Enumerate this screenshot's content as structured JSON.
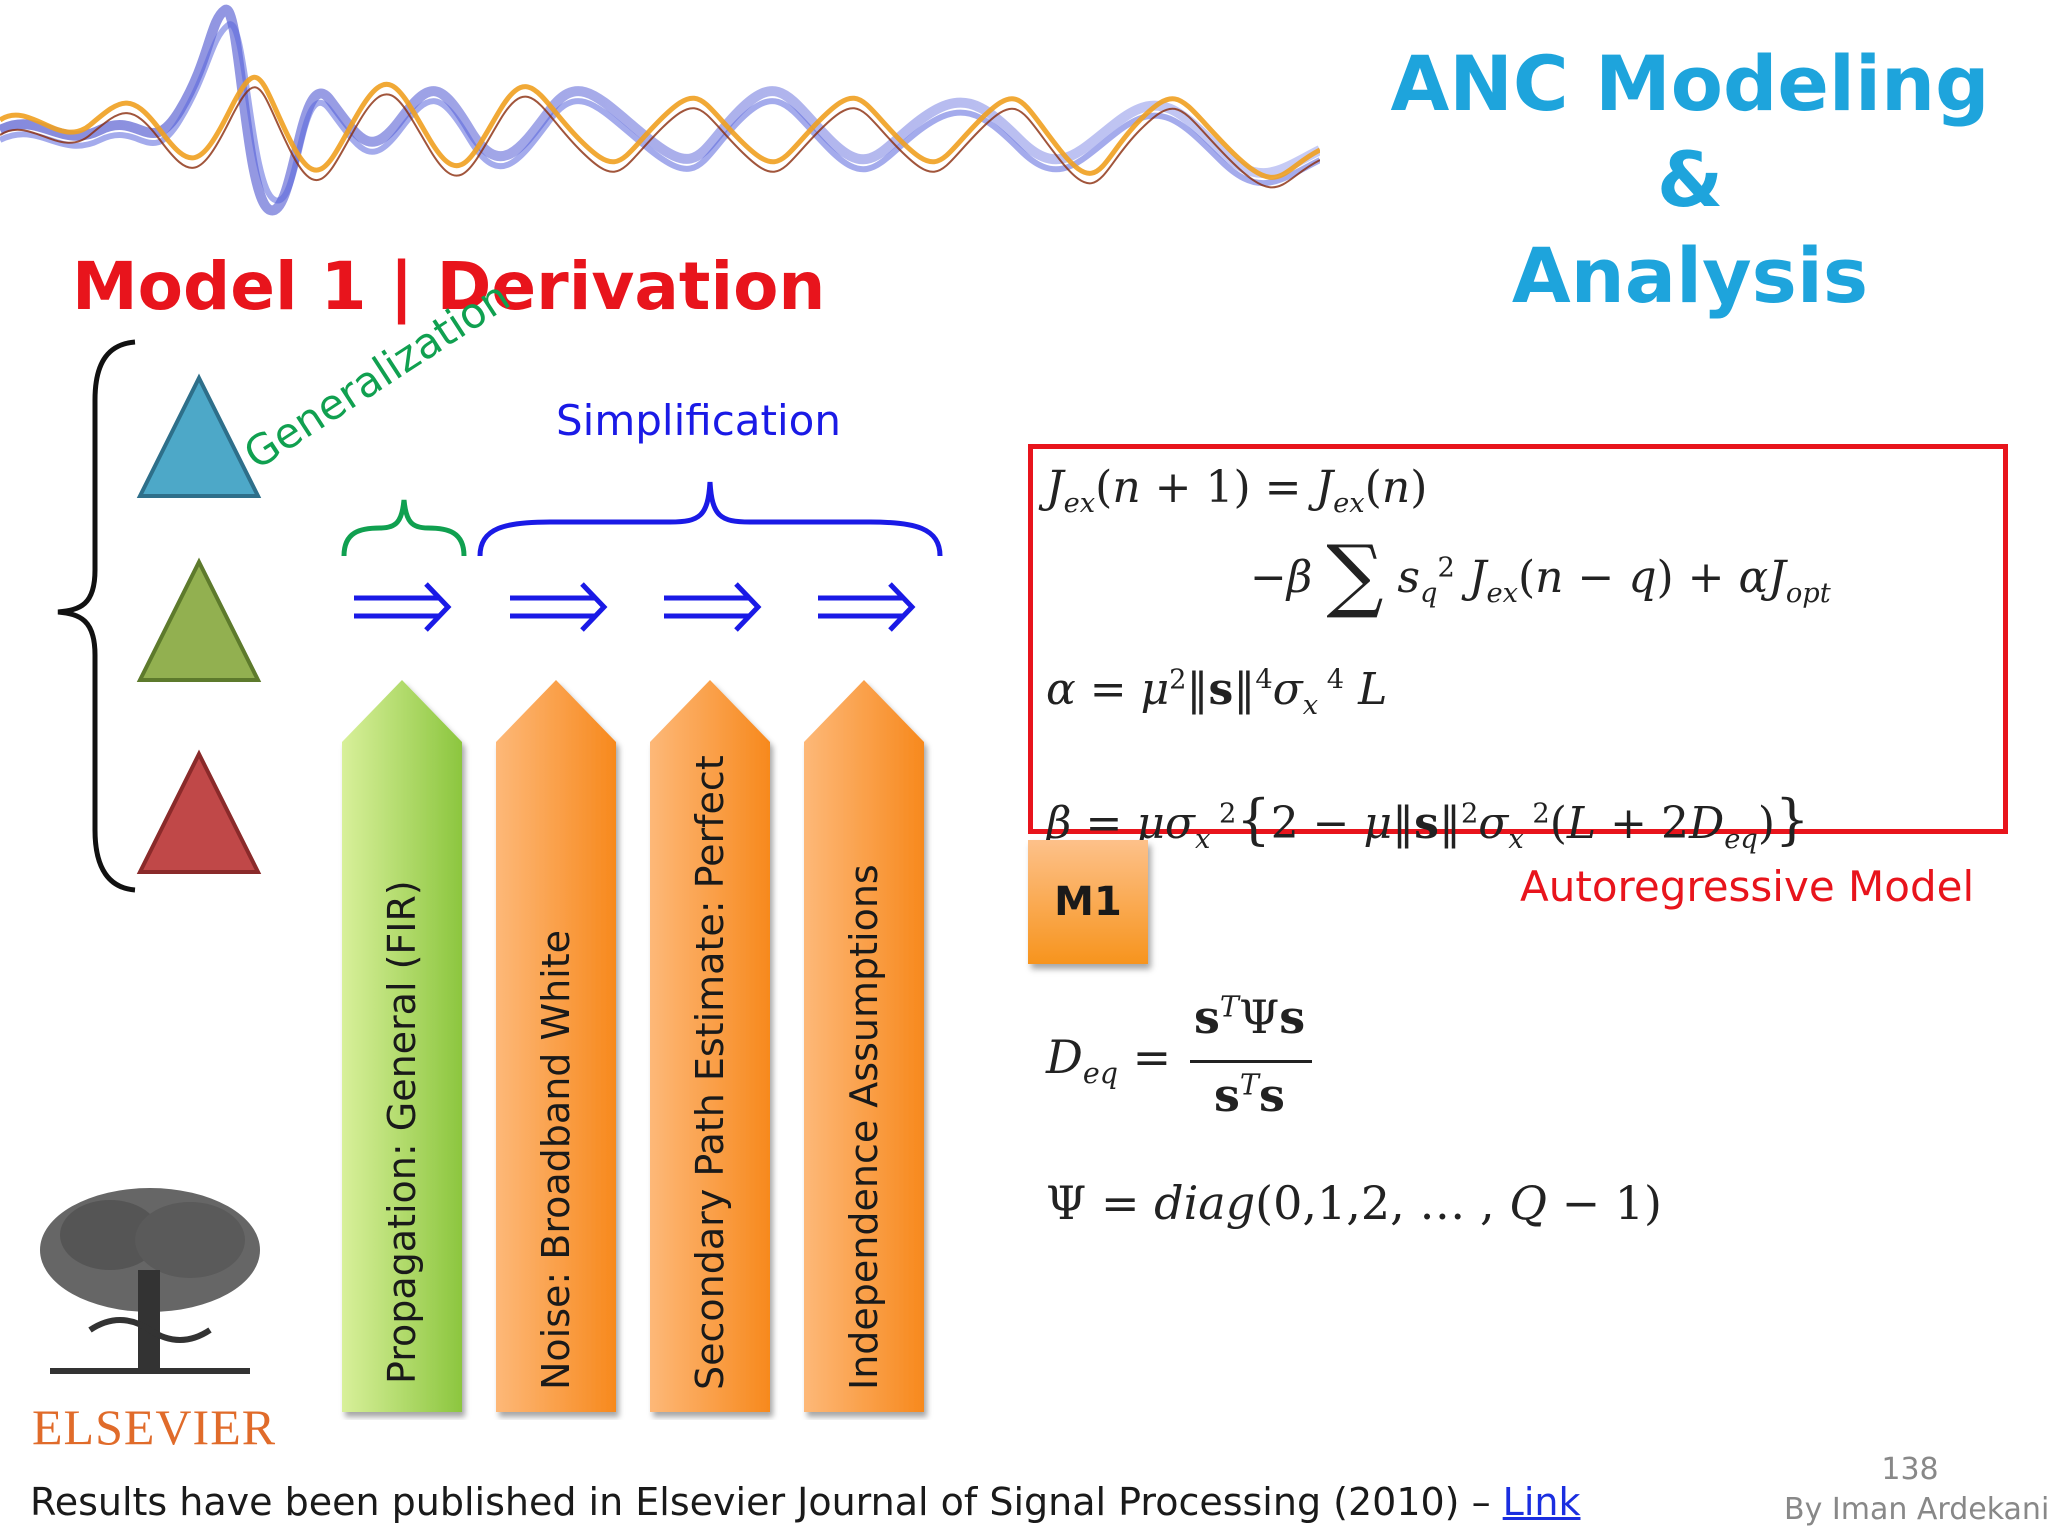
{
  "header": {
    "title_line1": "ANC Modeling &",
    "title_line2": "Analysis"
  },
  "section": {
    "title": "Model 1 | Derivation"
  },
  "labels": {
    "generalization": "Generalization",
    "simplification": "Simplification"
  },
  "colors": {
    "title_blue": "#1ea4dc",
    "red": "#e8141c",
    "green": "#10a050",
    "blue": "#1a1ae6",
    "triangle_blue": "#4da8c8",
    "triangle_green": "#92b050",
    "triangle_red": "#c04848",
    "bar_green": "#a8d45a",
    "bar_orange": "#f7941d"
  },
  "bars": [
    {
      "label": "Propagation: General (FIR)"
    },
    {
      "label": "Noise: Broadband White"
    },
    {
      "label": "Secondary Path Estimate: Perfect"
    },
    {
      "label": "Independence Assumptions"
    }
  ],
  "model_badge": "M1",
  "model_caption": "Autoregressive Model",
  "footer": {
    "text": "Results have been published in Elsevier Journal of Signal Processing (2010) – ",
    "link": "Link",
    "page_number": "138",
    "author": "By Iman Ardekani"
  },
  "logo": {
    "text": "ELSEVIER"
  }
}
